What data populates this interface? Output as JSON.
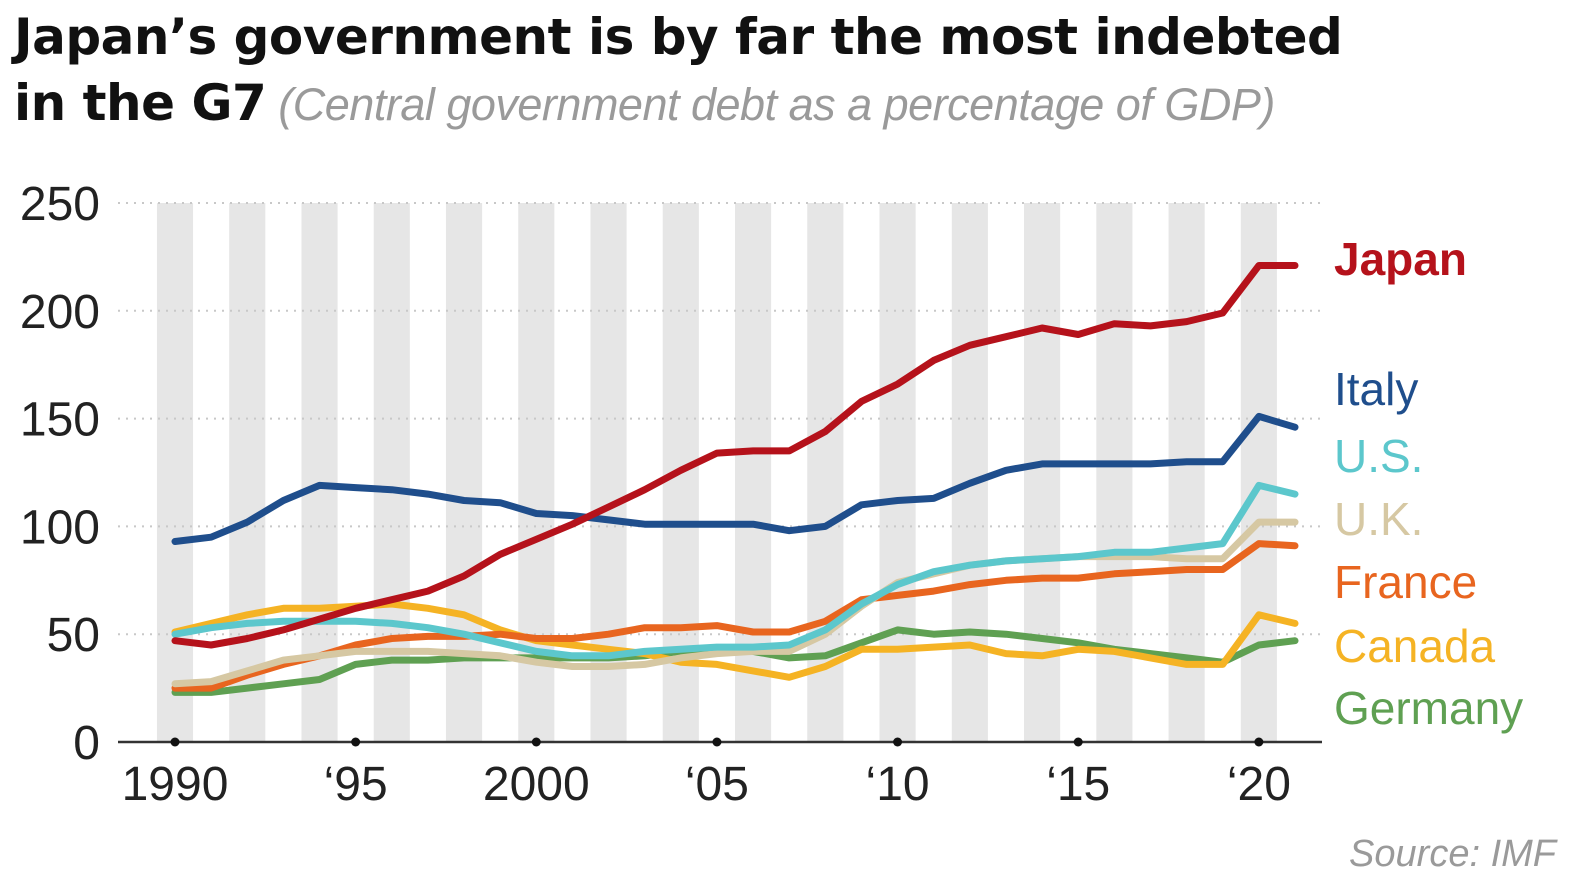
{
  "title": {
    "line1": "Japan’s government is by far the most indebted",
    "line2": "in the G7",
    "subtitle": "(Central government debt as a percentage of GDP)"
  },
  "source": "Source: IMF",
  "colors": {
    "Japan": "#b5121b",
    "Italy": "#1f4e8c",
    "U.S.": "#5cc7cc",
    "U.K.": "#d6c8a3",
    "France": "#e8651f",
    "Canada": "#f5b324",
    "Germany": "#5fa052",
    "stripe": "#e6e6e6",
    "grid": "#c8c8c8",
    "axis": "#333333"
  },
  "chart_data": {
    "type": "line",
    "title": "Japan’s government is by far the most indebted in the G7",
    "subtitle": "(Central government debt as a percentage of GDP)",
    "xlabel": "",
    "ylabel": "",
    "xlim": [
      1990,
      2021
    ],
    "ylim": [
      0,
      250
    ],
    "y_ticks": [
      0,
      50,
      100,
      150,
      200,
      250
    ],
    "x_ticks": [
      1990,
      1995,
      2000,
      2005,
      2010,
      2015,
      2020
    ],
    "x_tick_labels": [
      "1990",
      "‘95",
      "2000",
      "‘05",
      "‘10",
      "‘15",
      "‘20"
    ],
    "grid": "horizontal dotted",
    "legend": "right, labels at line ends",
    "x": [
      1990,
      1991,
      1992,
      1993,
      1994,
      1995,
      1996,
      1997,
      1998,
      1999,
      2000,
      2001,
      2002,
      2003,
      2004,
      2005,
      2006,
      2007,
      2008,
      2009,
      2010,
      2011,
      2012,
      2013,
      2014,
      2015,
      2016,
      2017,
      2018,
      2019,
      2020,
      2021
    ],
    "series": [
      {
        "name": "Japan",
        "values": [
          47,
          45,
          48,
          52,
          57,
          62,
          66,
          70,
          77,
          87,
          94,
          101,
          109,
          117,
          126,
          134,
          135,
          135,
          144,
          158,
          166,
          177,
          184,
          188,
          192,
          189,
          194,
          193,
          195,
          199,
          221,
          221
        ]
      },
      {
        "name": "Italy",
        "values": [
          93,
          95,
          102,
          112,
          119,
          118,
          117,
          115,
          112,
          111,
          106,
          105,
          103,
          101,
          101,
          101,
          101,
          98,
          100,
          110,
          112,
          113,
          120,
          126,
          129,
          129,
          129,
          129,
          130,
          130,
          151,
          146
        ]
      },
      {
        "name": "U.S.",
        "values": [
          50,
          53,
          55,
          56,
          56,
          56,
          55,
          53,
          50,
          46,
          42,
          40,
          40,
          42,
          43,
          44,
          44,
          45,
          52,
          64,
          73,
          79,
          82,
          84,
          85,
          86,
          88,
          88,
          90,
          92,
          119,
          115
        ]
      },
      {
        "name": "U.K.",
        "values": [
          27,
          28,
          33,
          38,
          40,
          42,
          42,
          42,
          41,
          40,
          37,
          35,
          35,
          36,
          39,
          41,
          42,
          42,
          50,
          63,
          74,
          78,
          82,
          84,
          85,
          86,
          86,
          86,
          85,
          85,
          102,
          102
        ]
      },
      {
        "name": "France",
        "values": [
          25,
          25,
          31,
          36,
          40,
          45,
          48,
          49,
          49,
          50,
          48,
          48,
          50,
          53,
          53,
          54,
          51,
          51,
          56,
          66,
          68,
          70,
          73,
          75,
          76,
          76,
          78,
          79,
          80,
          80,
          92,
          91
        ]
      },
      {
        "name": "Canada",
        "values": [
          51,
          55,
          59,
          62,
          62,
          63,
          64,
          62,
          59,
          52,
          47,
          45,
          43,
          41,
          37,
          36,
          33,
          30,
          35,
          43,
          43,
          44,
          45,
          41,
          40,
          43,
          42,
          39,
          36,
          36,
          59,
          55
        ]
      },
      {
        "name": "Germany",
        "values": [
          23,
          23,
          25,
          27,
          29,
          36,
          38,
          38,
          39,
          39,
          39,
          39,
          39,
          40,
          42,
          42,
          42,
          39,
          40,
          46,
          52,
          50,
          51,
          50,
          48,
          46,
          43,
          41,
          39,
          37,
          45,
          47
        ]
      }
    ]
  }
}
